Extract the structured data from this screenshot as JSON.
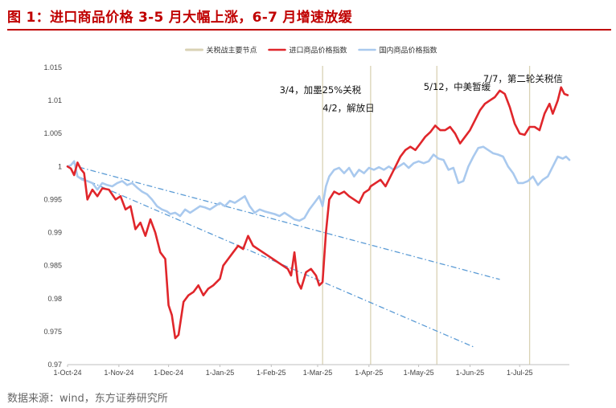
{
  "header": {
    "title": "图 1：进口商品价格 3-5 月大幅上涨，6-7 月增速放缓"
  },
  "footer": {
    "source": "数据来源：wind，东方证券研究所"
  },
  "colors": {
    "title": "#c00000",
    "import_series": "#e0262b",
    "domestic_series": "#a9c9ee",
    "event_lines": "#d9d2b4",
    "trend_lines": "#5b9bd5"
  },
  "chart_data": {
    "type": "line",
    "title": "",
    "xlabel": "",
    "ylabel": "",
    "ylim": [
      0.97,
      1.015
    ],
    "xlim": [
      "2024-10-01",
      "2025-07-31"
    ],
    "grid": false,
    "legend_position": "top-center",
    "y_ticks": [
      "0.97",
      "0.975",
      "0.98",
      "0.985",
      "0.99",
      "0.995",
      "1",
      "1.005",
      "1.01",
      "1.015"
    ],
    "x_ticks": [
      {
        "date": "2024-10-01",
        "label": "1-Oct-24"
      },
      {
        "date": "2024-11-01",
        "label": "1-Nov-24"
      },
      {
        "date": "2024-12-01",
        "label": "1-Dec-24"
      },
      {
        "date": "2025-01-01",
        "label": "1-Jan-25"
      },
      {
        "date": "2025-02-01",
        "label": "1-Feb-25"
      },
      {
        "date": "2025-03-01",
        "label": "1-Mar-25"
      },
      {
        "date": "2025-04-01",
        "label": "1-Apr-25"
      },
      {
        "date": "2025-05-01",
        "label": "1-May-25"
      },
      {
        "date": "2025-06-01",
        "label": "1-Jun-25"
      },
      {
        "date": "2025-07-01",
        "label": "1-Jul-25"
      }
    ],
    "legend": [
      {
        "key": "events",
        "label": "关税战主要节点"
      },
      {
        "key": "import",
        "label": "进口商品价格指数"
      },
      {
        "key": "domestic",
        "label": "国内商品价格指数"
      }
    ],
    "event_dates": [
      "2025-03-04",
      "2025-04-02",
      "2025-05-12",
      "2025-07-07"
    ],
    "annotations": [
      {
        "text": "3/4，加墨25%关税",
        "date": "2025-02-06",
        "y": 1.0111
      },
      {
        "text": "4/2，解放日",
        "date": "2025-03-04",
        "y": 1.0084
      },
      {
        "text": "5/12，中美暂缓",
        "date": "2025-05-04",
        "y": 1.0116
      },
      {
        "text": "7/7，第二轮关税信",
        "date": "2025-06-09",
        "y": 1.0128
      }
    ],
    "trend_lines": [
      {
        "from": {
          "date": "2024-10-08",
          "y": 0.9999
        },
        "to": {
          "date": "2025-06-19",
          "y": 0.9829
        }
      },
      {
        "from": {
          "date": "2024-10-08",
          "y": 0.9984
        },
        "to": {
          "date": "2025-06-03",
          "y": 0.9727
        }
      }
    ],
    "series": [
      {
        "name": "进口商品价格指数",
        "key": "import",
        "points": [
          [
            "2024-10-01",
            1.0
          ],
          [
            "2024-10-03",
            0.9997
          ],
          [
            "2024-10-05",
            0.9987
          ],
          [
            "2024-10-07",
            1.0006
          ],
          [
            "2024-10-09",
            0.9996
          ],
          [
            "2024-10-11",
            0.999
          ],
          [
            "2024-10-13",
            0.995
          ],
          [
            "2024-10-16",
            0.9965
          ],
          [
            "2024-10-19",
            0.9955
          ],
          [
            "2024-10-22",
            0.9967
          ],
          [
            "2024-10-26",
            0.9965
          ],
          [
            "2024-10-30",
            0.995
          ],
          [
            "2024-11-02",
            0.9955
          ],
          [
            "2024-11-05",
            0.9935
          ],
          [
            "2024-11-08",
            0.994
          ],
          [
            "2024-11-11",
            0.9905
          ],
          [
            "2024-11-14",
            0.9915
          ],
          [
            "2024-11-17",
            0.9895
          ],
          [
            "2024-11-20",
            0.992
          ],
          [
            "2024-11-23",
            0.99
          ],
          [
            "2024-11-26",
            0.987
          ],
          [
            "2024-11-29",
            0.986
          ],
          [
            "2024-12-01",
            0.979
          ],
          [
            "2024-12-03",
            0.9775
          ],
          [
            "2024-12-05",
            0.974
          ],
          [
            "2024-12-07",
            0.9745
          ],
          [
            "2024-12-10",
            0.9795
          ],
          [
            "2024-12-13",
            0.9805
          ],
          [
            "2024-12-16",
            0.981
          ],
          [
            "2024-12-19",
            0.982
          ],
          [
            "2024-12-22",
            0.9805
          ],
          [
            "2024-12-25",
            0.9815
          ],
          [
            "2024-12-28",
            0.982
          ],
          [
            "2025-01-01",
            0.983
          ],
          [
            "2025-01-03",
            0.985
          ],
          [
            "2025-01-06",
            0.986
          ],
          [
            "2025-01-09",
            0.987
          ],
          [
            "2025-01-12",
            0.988
          ],
          [
            "2025-01-15",
            0.9875
          ],
          [
            "2025-01-18",
            0.9895
          ],
          [
            "2025-01-21",
            0.988
          ],
          [
            "2025-01-24",
            0.9875
          ],
          [
            "2025-01-27",
            0.987
          ],
          [
            "2025-01-30",
            0.9865
          ],
          [
            "2025-02-02",
            0.986
          ],
          [
            "2025-02-05",
            0.9855
          ],
          [
            "2025-02-08",
            0.985
          ],
          [
            "2025-02-11",
            0.9845
          ],
          [
            "2025-02-13",
            0.9835
          ],
          [
            "2025-02-15",
            0.987
          ],
          [
            "2025-02-17",
            0.9825
          ],
          [
            "2025-02-19",
            0.9815
          ],
          [
            "2025-02-22",
            0.984
          ],
          [
            "2025-02-25",
            0.9845
          ],
          [
            "2025-02-28",
            0.9835
          ],
          [
            "2025-03-02",
            0.982
          ],
          [
            "2025-03-04",
            0.9825
          ],
          [
            "2025-03-06",
            0.99
          ],
          [
            "2025-03-08",
            0.995
          ],
          [
            "2025-03-11",
            0.9962
          ],
          [
            "2025-03-14",
            0.9958
          ],
          [
            "2025-03-17",
            0.9962
          ],
          [
            "2025-03-20",
            0.9955
          ],
          [
            "2025-03-23",
            0.995
          ],
          [
            "2025-03-26",
            0.9945
          ],
          [
            "2025-03-29",
            0.996
          ],
          [
            "2025-04-01",
            0.9965
          ],
          [
            "2025-04-02",
            0.997
          ],
          [
            "2025-04-05",
            0.9975
          ],
          [
            "2025-04-08",
            0.998
          ],
          [
            "2025-04-11",
            0.997
          ],
          [
            "2025-04-14",
            0.9985
          ],
          [
            "2025-04-17",
            1.0
          ],
          [
            "2025-04-20",
            1.0015
          ],
          [
            "2025-04-23",
            1.0025
          ],
          [
            "2025-04-26",
            1.003
          ],
          [
            "2025-04-29",
            1.0025
          ],
          [
            "2025-05-02",
            1.0035
          ],
          [
            "2025-05-05",
            1.0045
          ],
          [
            "2025-05-08",
            1.0052
          ],
          [
            "2025-05-11",
            1.0062
          ],
          [
            "2025-05-14",
            1.0055
          ],
          [
            "2025-05-17",
            1.0055
          ],
          [
            "2025-05-20",
            1.006
          ],
          [
            "2025-05-23",
            1.005
          ],
          [
            "2025-05-26",
            1.0035
          ],
          [
            "2025-05-29",
            1.0045
          ],
          [
            "2025-06-01",
            1.0055
          ],
          [
            "2025-06-04",
            1.007
          ],
          [
            "2025-06-07",
            1.0085
          ],
          [
            "2025-06-10",
            1.0095
          ],
          [
            "2025-06-13",
            1.01
          ],
          [
            "2025-06-16",
            1.0105
          ],
          [
            "2025-06-19",
            1.0115
          ],
          [
            "2025-06-22",
            1.011
          ],
          [
            "2025-06-25",
            1.009
          ],
          [
            "2025-06-28",
            1.0065
          ],
          [
            "2025-07-01",
            1.005
          ],
          [
            "2025-07-04",
            1.0048
          ],
          [
            "2025-07-07",
            1.006
          ],
          [
            "2025-07-10",
            1.006
          ],
          [
            "2025-07-13",
            1.0055
          ],
          [
            "2025-07-16",
            1.008
          ],
          [
            "2025-07-19",
            1.0095
          ],
          [
            "2025-07-21",
            1.008
          ],
          [
            "2025-07-24",
            1.01
          ],
          [
            "2025-07-26",
            1.012
          ],
          [
            "2025-07-28",
            1.011
          ],
          [
            "2025-07-30",
            1.0108
          ]
        ]
      },
      {
        "name": "国内商品价格指数",
        "key": "domestic",
        "points": [
          [
            "2024-10-01",
            1.0
          ],
          [
            "2024-10-03",
            1.0002
          ],
          [
            "2024-10-05",
            1.0008
          ],
          [
            "2024-10-07",
            0.9985
          ],
          [
            "2024-10-10",
            0.998
          ],
          [
            "2024-10-13",
            0.9978
          ],
          [
            "2024-10-16",
            0.9975
          ],
          [
            "2024-10-19",
            0.9965
          ],
          [
            "2024-10-22",
            0.9975
          ],
          [
            "2024-10-25",
            0.9972
          ],
          [
            "2024-10-28",
            0.997
          ],
          [
            "2024-10-31",
            0.9975
          ],
          [
            "2024-11-03",
            0.9978
          ],
          [
            "2024-11-06",
            0.9972
          ],
          [
            "2024-11-09",
            0.9975
          ],
          [
            "2024-11-12",
            0.9968
          ],
          [
            "2024-11-15",
            0.9962
          ],
          [
            "2024-11-18",
            0.9958
          ],
          [
            "2024-11-21",
            0.995
          ],
          [
            "2024-11-24",
            0.994
          ],
          [
            "2024-11-27",
            0.9935
          ],
          [
            "2024-11-30",
            0.9932
          ],
          [
            "2024-12-02",
            0.9928
          ],
          [
            "2024-12-05",
            0.993
          ],
          [
            "2024-12-08",
            0.9925
          ],
          [
            "2024-12-11",
            0.9935
          ],
          [
            "2024-12-14",
            0.993
          ],
          [
            "2024-12-17",
            0.9935
          ],
          [
            "2024-12-20",
            0.994
          ],
          [
            "2024-12-23",
            0.9938
          ],
          [
            "2024-12-26",
            0.9935
          ],
          [
            "2024-12-29",
            0.994
          ],
          [
            "2025-01-01",
            0.9945
          ],
          [
            "2025-01-04",
            0.994
          ],
          [
            "2025-01-07",
            0.9948
          ],
          [
            "2025-01-10",
            0.9945
          ],
          [
            "2025-01-13",
            0.995
          ],
          [
            "2025-01-16",
            0.9955
          ],
          [
            "2025-01-19",
            0.994
          ],
          [
            "2025-01-22",
            0.993
          ],
          [
            "2025-01-25",
            0.9935
          ],
          [
            "2025-01-28",
            0.9932
          ],
          [
            "2025-01-31",
            0.993
          ],
          [
            "2025-02-03",
            0.9928
          ],
          [
            "2025-02-06",
            0.9925
          ],
          [
            "2025-02-09",
            0.993
          ],
          [
            "2025-02-12",
            0.9925
          ],
          [
            "2025-02-15",
            0.992
          ],
          [
            "2025-02-18",
            0.9918
          ],
          [
            "2025-02-21",
            0.9922
          ],
          [
            "2025-02-24",
            0.9935
          ],
          [
            "2025-02-27",
            0.9945
          ],
          [
            "2025-03-02",
            0.9955
          ],
          [
            "2025-03-04",
            0.994
          ],
          [
            "2025-03-06",
            0.997
          ],
          [
            "2025-03-08",
            0.9985
          ],
          [
            "2025-03-11",
            0.9995
          ],
          [
            "2025-03-14",
            0.9998
          ],
          [
            "2025-03-17",
            0.999
          ],
          [
            "2025-03-20",
            0.9998
          ],
          [
            "2025-03-23",
            0.9985
          ],
          [
            "2025-03-26",
            0.9995
          ],
          [
            "2025-03-29",
            0.999
          ],
          [
            "2025-04-01",
            0.9998
          ],
          [
            "2025-04-04",
            0.9995
          ],
          [
            "2025-04-07",
            0.9999
          ],
          [
            "2025-04-10",
            0.9995
          ],
          [
            "2025-04-13",
            1.0
          ],
          [
            "2025-04-16",
            0.9995
          ],
          [
            "2025-04-19",
            1.0
          ],
          [
            "2025-04-22",
            1.0005
          ],
          [
            "2025-04-25",
            0.9998
          ],
          [
            "2025-04-28",
            1.0005
          ],
          [
            "2025-05-01",
            1.0008
          ],
          [
            "2025-05-04",
            1.0005
          ],
          [
            "2025-05-07",
            1.0008
          ],
          [
            "2025-05-10",
            1.0018
          ],
          [
            "2025-05-13",
            1.0012
          ],
          [
            "2025-05-16",
            1.001
          ],
          [
            "2025-05-19",
            0.9995
          ],
          [
            "2025-05-22",
            0.9998
          ],
          [
            "2025-05-25",
            0.9975
          ],
          [
            "2025-05-28",
            0.9978
          ],
          [
            "2025-05-31",
            1.0
          ],
          [
            "2025-06-03",
            1.0015
          ],
          [
            "2025-06-06",
            1.0028
          ],
          [
            "2025-06-09",
            1.003
          ],
          [
            "2025-06-12",
            1.0025
          ],
          [
            "2025-06-15",
            1.002
          ],
          [
            "2025-06-18",
            1.0018
          ],
          [
            "2025-06-21",
            1.0015
          ],
          [
            "2025-06-24",
            1.0
          ],
          [
            "2025-06-27",
            0.999
          ],
          [
            "2025-06-30",
            0.9975
          ],
          [
            "2025-07-03",
            0.9975
          ],
          [
            "2025-07-06",
            0.9978
          ],
          [
            "2025-07-09",
            0.9985
          ],
          [
            "2025-07-12",
            0.9972
          ],
          [
            "2025-07-15",
            0.998
          ],
          [
            "2025-07-18",
            0.9985
          ],
          [
            "2025-07-21",
            1.0
          ],
          [
            "2025-07-24",
            1.0015
          ],
          [
            "2025-07-27",
            1.0012
          ],
          [
            "2025-07-29",
            1.0015
          ],
          [
            "2025-07-31",
            1.001
          ]
        ]
      }
    ]
  }
}
